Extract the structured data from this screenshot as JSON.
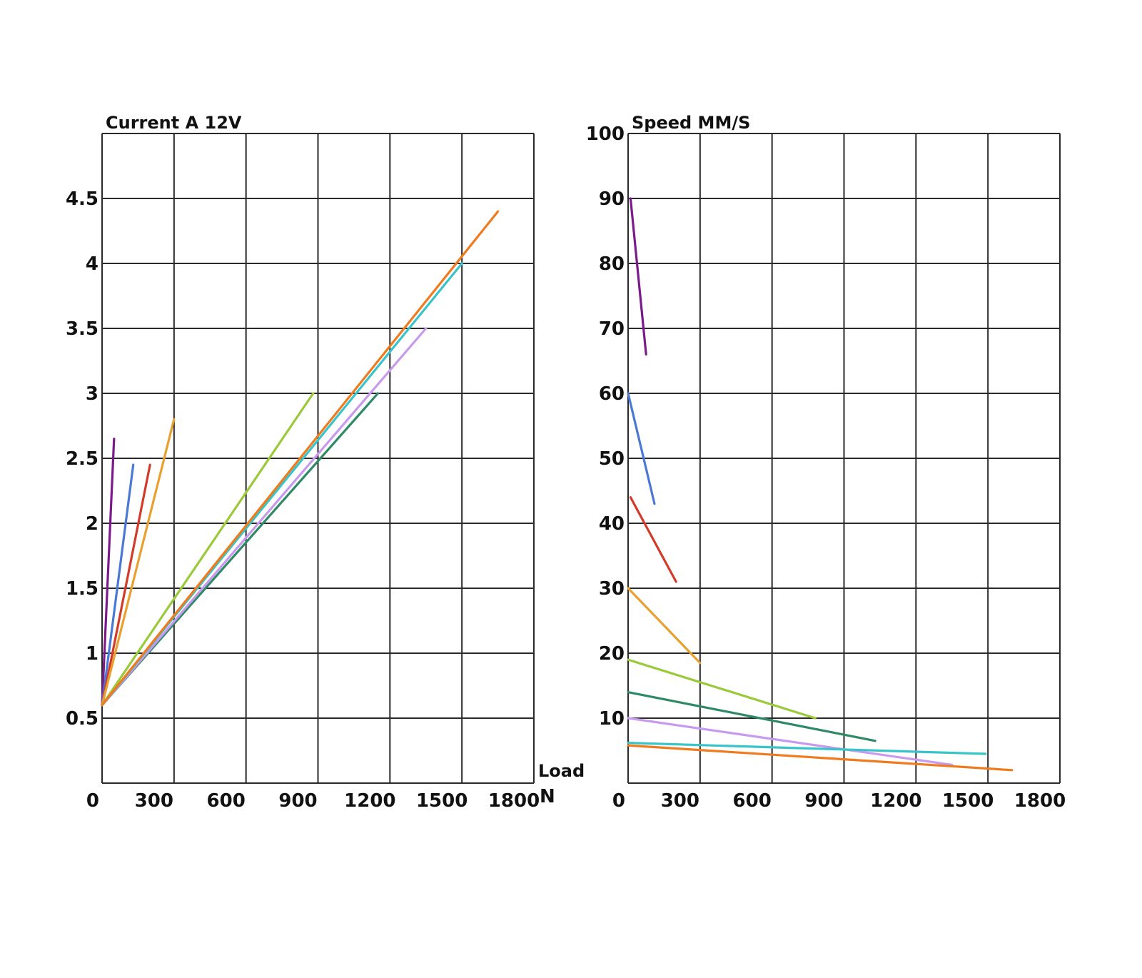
{
  "chart_data": [
    {
      "type": "line",
      "title": "Current A 12V",
      "xlim": [
        0,
        1800
      ],
      "ylim": [
        0,
        5
      ],
      "x_ticks": [
        "0",
        "300",
        "600",
        "900",
        "1200",
        "1500",
        "1800"
      ],
      "y_ticks": [
        "0.5",
        "1",
        "1.5",
        "2",
        "2.5",
        "3",
        "3.5",
        "4",
        "4.5"
      ],
      "x_unit_label": "N",
      "load_label": "Load",
      "grid": true,
      "series": [
        {
          "color": "#7a1a8c",
          "x": [
            0,
            50
          ],
          "y": [
            0.6,
            2.65
          ]
        },
        {
          "color": "#4a78d4",
          "x": [
            0,
            130
          ],
          "y": [
            0.6,
            2.45
          ]
        },
        {
          "color": "#d43a2a",
          "x": [
            0,
            200
          ],
          "y": [
            0.6,
            2.45
          ]
        },
        {
          "color": "#e8a030",
          "x": [
            0,
            300
          ],
          "y": [
            0.6,
            2.8
          ]
        },
        {
          "color": "#9ac93a",
          "x": [
            0,
            880
          ],
          "y": [
            0.6,
            3.0
          ]
        },
        {
          "color": "#2e8a66",
          "x": [
            0,
            1150
          ],
          "y": [
            0.6,
            3.0
          ]
        },
        {
          "color": "#c79af0",
          "x": [
            0,
            1350
          ],
          "y": [
            0.6,
            3.5
          ]
        },
        {
          "color": "#38c4c8",
          "x": [
            0,
            1500
          ],
          "y": [
            0.6,
            4.0
          ]
        },
        {
          "color": "#f07a1e",
          "x": [
            0,
            1650
          ],
          "y": [
            0.6,
            4.4
          ]
        }
      ]
    },
    {
      "type": "line",
      "title": "Speed MM/S",
      "xlim": [
        0,
        1800
      ],
      "ylim": [
        0,
        100
      ],
      "x_ticks": [
        "0",
        "300",
        "600",
        "900",
        "1200",
        "1500",
        "1800"
      ],
      "y_ticks": [
        "10",
        "20",
        "30",
        "40",
        "50",
        "60",
        "70",
        "80",
        "90",
        "100"
      ],
      "grid": true,
      "series": [
        {
          "color": "#7a1a8c",
          "x": [
            10,
            75
          ],
          "y": [
            90.0,
            66.0
          ]
        },
        {
          "color": "#4a78d4",
          "x": [
            0,
            110
          ],
          "y": [
            60.0,
            43.0
          ]
        },
        {
          "color": "#d43a2a",
          "x": [
            10,
            200
          ],
          "y": [
            44.0,
            31.0
          ]
        },
        {
          "color": "#e8a030",
          "x": [
            0,
            300
          ],
          "y": [
            30.0,
            18.5
          ]
        },
        {
          "color": "#9ac93a",
          "x": [
            0,
            780
          ],
          "y": [
            19.0,
            10.0
          ]
        },
        {
          "color": "#2e8a66",
          "x": [
            0,
            1030
          ],
          "y": [
            14.0,
            6.5
          ]
        },
        {
          "color": "#c79af0",
          "x": [
            0,
            1350
          ],
          "y": [
            10.0,
            2.8
          ]
        },
        {
          "color": "#38c4c8",
          "x": [
            0,
            1490
          ],
          "y": [
            6.2,
            4.5
          ]
        },
        {
          "color": "#f07a1e",
          "x": [
            0,
            1600
          ],
          "y": [
            5.8,
            2.0
          ]
        }
      ]
    }
  ]
}
